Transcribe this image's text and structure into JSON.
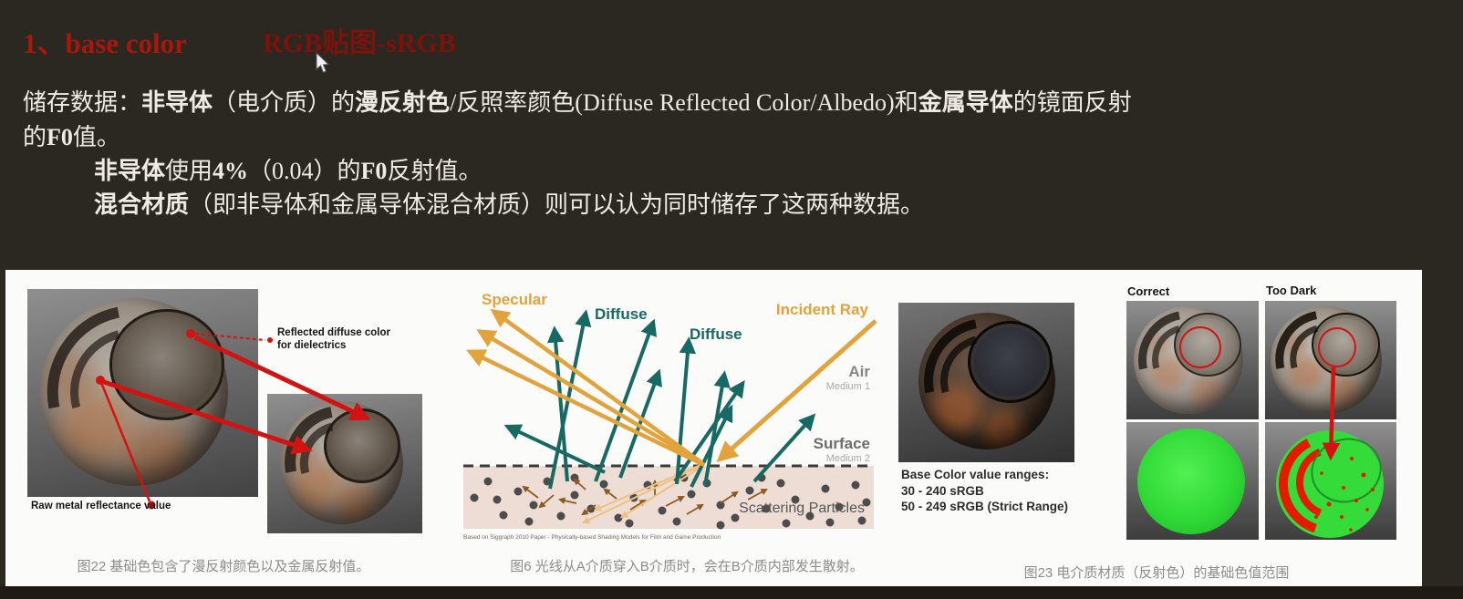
{
  "heading": {
    "number": "1、base color",
    "sub": "RGB贴图-sRGB"
  },
  "intro": {
    "line1": [
      {
        "t": "储存数据："
      },
      {
        "t": "非导体",
        "b": true
      },
      {
        "t": "（电介质）的"
      },
      {
        "t": "漫反射色",
        "b": true
      },
      {
        "t": "/反照率颜色(Diffuse Reflected Color/Albedo)和"
      },
      {
        "t": "金属导体",
        "b": true
      },
      {
        "t": "的镜面反射"
      }
    ],
    "line2": [
      {
        "t": "的"
      },
      {
        "t": "F0",
        "b": true
      },
      {
        "t": "值。"
      }
    ],
    "line3": [
      {
        "t": "非导体",
        "b": true
      },
      {
        "t": "使用"
      },
      {
        "t": "4%",
        "b": true
      },
      {
        "t": "（0.04）的"
      },
      {
        "t": "F0",
        "b": true
      },
      {
        "t": "反射值。"
      }
    ],
    "line4": [
      {
        "t": "混合材质",
        "b": true
      },
      {
        "t": "（即非导体和金属导体混合材质）则可以认为同时储存了这两种数据。"
      }
    ]
  },
  "fig22": {
    "label_reflected_1": "Reflected diffuse color",
    "label_reflected_2": "for dielectrics",
    "label_raw": "Raw metal reflectance value",
    "caption": "图22 基础色包含了漫反射颜色以及金属反射值。"
  },
  "fig6": {
    "label_specular": "Specular",
    "label_diffuse1": "Diffuse",
    "label_diffuse2": "Diffuse",
    "label_incident": "Incident Ray",
    "label_air": "Air",
    "label_medium1": "Medium 1",
    "label_surface": "Surface",
    "label_medium2": "Medium 2",
    "label_scattering": "Scattering Particles",
    "attribution": "Based on Siggraph 2010 Paper - Physically-based Shading Models for Film and Game Production",
    "caption": "图6  光线从A介质穿入B介质时，会在B介质内部发生散射。"
  },
  "fig23": {
    "ranges_title": "Base Color value ranges:",
    "range1": "30 - 240 sRGB",
    "range2": "50 - 249 sRGB (Strict Range)",
    "label_correct": "Correct",
    "label_too_dark": "Too Dark",
    "caption": "图23 电介质材质（反射色）的基础色值范围"
  },
  "colors": {
    "background": "#2b2721",
    "heading_red": "#a8170c",
    "heading_red_dim": "#7c120a",
    "body_text": "#f0ebe2",
    "panel_white": "#fbfbfa",
    "caption_gray": "#8d8d8d",
    "specular_orange": "#e2a33c",
    "diffuse_teal": "#176a63",
    "annotation_red": "#d31212",
    "band_pink": "#eeddd4",
    "green_ok": "#34db39"
  }
}
